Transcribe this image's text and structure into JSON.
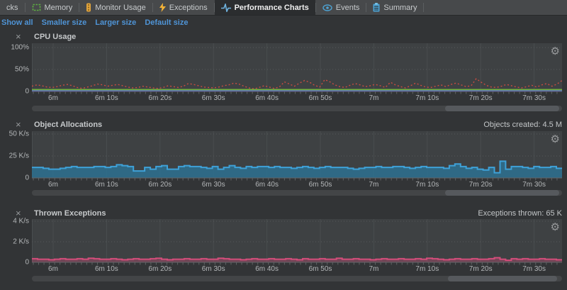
{
  "colors": {
    "page_bg": "#323436",
    "tabbar_bg": "#47494b",
    "selected_tab_bg": "#2b2d2f",
    "plot_bg": "#3e4143",
    "grid_v": "#494d4f",
    "grid_h": "#56595b",
    "axis": "#606365",
    "link_blue": "#4f94d6",
    "cpu_red": "#cb4b41",
    "cpu_green": "#74b33c",
    "cpu_blue": "#5a67e3",
    "alloc_stroke": "#3ea1d8",
    "alloc_fill": "#2d7191",
    "exc_stroke": "#d44d7b",
    "exc_fill": "#d44d7b"
  },
  "tab_bar": {
    "tabs": [
      {
        "label": "cks",
        "icon": null,
        "selected": false
      },
      {
        "label": "Memory",
        "icon": "memory-chip-icon",
        "selected": false
      },
      {
        "label": "Monitor Usage",
        "icon": "traffic-light-icon",
        "selected": false
      },
      {
        "label": "Exceptions",
        "icon": "lightning-icon",
        "selected": false
      },
      {
        "label": "Performance Charts",
        "icon": "pulse-icon",
        "selected": true
      },
      {
        "label": "Events",
        "icon": "eye-icon",
        "selected": false
      },
      {
        "label": "Summary",
        "icon": "clipboard-icon",
        "selected": false
      }
    ]
  },
  "toolbar": {
    "links": [
      "Show all",
      "Smaller size",
      "Larger size",
      "Default size"
    ]
  },
  "time_axis": [
    "6m",
    "6m 10s",
    "6m 20s",
    "6m 30s",
    "6m 40s",
    "6m 50s",
    "7m",
    "7m 10s",
    "7m 20s",
    "7m 30s"
  ],
  "panels": [
    {
      "key": "cpu-usage",
      "title": "CPU Usage",
      "stat": "",
      "close_glyph": "×",
      "gear_glyph": "⚙",
      "scrollbar": {
        "thumb_left_pct": 78.0,
        "thumb_width_pct": 21.5
      }
    },
    {
      "key": "object-allocations",
      "title": "Object Allocations",
      "stat": "Objects created: 4.5 M",
      "close_glyph": "×",
      "gear_glyph": "⚙",
      "scrollbar": {
        "thumb_left_pct": 78.0,
        "thumb_width_pct": 21.5
      }
    },
    {
      "key": "thrown-exceptions",
      "title": "Thrown Exceptions",
      "stat": "Exceptions thrown: 65 K",
      "close_glyph": "×",
      "gear_glyph": "⚙",
      "scrollbar": {
        "thumb_left_pct": 78.5,
        "thumb_width_pct": 20.5
      }
    }
  ],
  "chart_data": [
    {
      "type": "line",
      "title": "CPU Usage",
      "ylim": [
        0,
        100
      ],
      "grid": true,
      "legend": "none",
      "x_ticks": [
        "6m",
        "6m 10s",
        "6m 20s",
        "6m 30s",
        "6m 40s",
        "6m 50s",
        "7m",
        "7m 10s",
        "7m 20s",
        "7m 30s"
      ],
      "y_ticks": [
        {
          "label": "100%",
          "value": 100
        },
        {
          "label": "50%",
          "value": 50
        },
        {
          "label": "0",
          "value": 0
        }
      ],
      "series": [
        {
          "name": "cpu-load-percent",
          "color": "#cb4b41",
          "style": "dotted",
          "values": [
            12,
            15,
            13,
            10,
            9,
            11,
            14,
            16,
            13,
            9,
            7,
            10,
            13,
            17,
            15,
            12,
            14,
            16,
            13,
            10,
            8,
            9,
            12,
            10,
            8,
            7,
            9,
            13,
            11,
            9,
            12,
            18,
            16,
            13,
            10,
            9,
            8,
            10,
            13,
            15,
            19,
            17,
            12,
            8,
            6,
            9,
            13,
            10,
            7,
            10,
            22,
            17,
            12,
            19,
            25,
            21,
            14,
            10,
            27,
            22,
            15,
            11,
            9,
            14,
            18,
            15,
            11,
            13,
            16,
            13,
            9,
            21,
            15,
            11,
            8,
            13,
            19,
            14,
            10,
            9,
            12,
            15,
            11,
            16,
            19,
            15,
            11,
            13,
            29,
            21,
            14,
            10,
            9,
            12,
            16,
            13,
            10,
            8,
            11,
            14,
            10,
            15,
            18,
            12,
            17,
            25
          ]
        },
        {
          "name": "green-baseline-percent",
          "color": "#74b33c",
          "style": "solid",
          "values": [
            4,
            4
          ]
        },
        {
          "name": "blue-baseline-percent",
          "color": "#5a67e3",
          "style": "solid",
          "values": [
            1,
            1
          ]
        }
      ]
    },
    {
      "type": "area",
      "title": "Object Allocations",
      "ylim": [
        0,
        50
      ],
      "unit": "K/s",
      "grid": true,
      "legend": "none",
      "annotation": "Objects created: 4.5 M",
      "x_ticks": [
        "6m",
        "6m 10s",
        "6m 20s",
        "6m 30s",
        "6m 40s",
        "6m 50s",
        "7m",
        "7m 10s",
        "7m 20s",
        "7m 30s"
      ],
      "y_ticks": [
        {
          "label": "50 K/s",
          "value": 50
        },
        {
          "label": "25 K/s",
          "value": 25
        },
        {
          "label": "0",
          "value": 0
        }
      ],
      "series": [
        {
          "name": "allocations-k-per-s",
          "color": "#3ea1d8",
          "fill": "#2d7191",
          "style": "step",
          "values": [
            12,
            12,
            11,
            10,
            10,
            11,
            12,
            13,
            12,
            12,
            12,
            13,
            13,
            12,
            13,
            15,
            14,
            13,
            8,
            8,
            12,
            10,
            13,
            14,
            10,
            10,
            13,
            14,
            13,
            13,
            12,
            11,
            13,
            10,
            12,
            14,
            12,
            11,
            13,
            12,
            13,
            13,
            12,
            13,
            12,
            12,
            11,
            12,
            13,
            12,
            11,
            12,
            13,
            12,
            12,
            12,
            11,
            10,
            11,
            12,
            12,
            13,
            12,
            12,
            13,
            13,
            12,
            11,
            12,
            13,
            12,
            12,
            12,
            11,
            14,
            16,
            13,
            11,
            12,
            10,
            9,
            12,
            6,
            19,
            10,
            13,
            13,
            12,
            11,
            13,
            12,
            12,
            13,
            11
          ]
        }
      ]
    },
    {
      "type": "area",
      "title": "Thrown Exceptions",
      "ylim": [
        0,
        4
      ],
      "unit": "K/s",
      "grid": true,
      "legend": "none",
      "annotation": "Exceptions thrown: 65 K",
      "x_ticks": [
        "6m",
        "6m 10s",
        "6m 20s",
        "6m 30s",
        "6m 40s",
        "6m 50s",
        "7m",
        "7m 10s",
        "7m 20s",
        "7m 30s"
      ],
      "y_ticks": [
        {
          "label": "4 K/s",
          "value": 4
        },
        {
          "label": "2 K/s",
          "value": 2
        },
        {
          "label": "0",
          "value": 0
        }
      ],
      "series": [
        {
          "name": "exceptions-k-per-s",
          "color": "#d44d7b",
          "fill": "#d44d7b",
          "style": "step",
          "values": [
            0.35,
            0.3,
            0.3,
            0.25,
            0.3,
            0.35,
            0.3,
            0.3,
            0.35,
            0.3,
            0.4,
            0.35,
            0.3,
            0.3,
            0.35,
            0.3,
            0.25,
            0.3,
            0.35,
            0.3,
            0.3,
            0.35,
            0.4,
            0.3,
            0.25,
            0.3,
            0.3,
            0.35,
            0.3,
            0.3,
            0.35,
            0.3,
            0.3,
            0.4,
            0.35,
            0.3,
            0.3,
            0.25,
            0.3,
            0.35,
            0.3,
            0.3,
            0.35,
            0.3,
            0.3,
            0.35,
            0.3,
            0.25,
            0.35,
            0.3,
            0.3,
            0.35,
            0.3,
            0.3,
            0.4,
            0.3,
            0.3,
            0.35,
            0.3,
            0.3,
            0.25,
            0.3,
            0.35,
            0.3,
            0.3,
            0.35,
            0.3,
            0.3,
            0.35,
            0.3,
            0.4,
            0.35,
            0.3,
            0.25,
            0.3,
            0.35,
            0.3,
            0.3,
            0.35,
            0.3,
            0.3,
            0.35,
            0.45,
            0.3,
            0.2,
            0.35,
            0.3,
            0.35,
            0.3,
            0.3,
            0.35,
            0.3,
            0.3,
            0.25
          ]
        }
      ]
    }
  ]
}
